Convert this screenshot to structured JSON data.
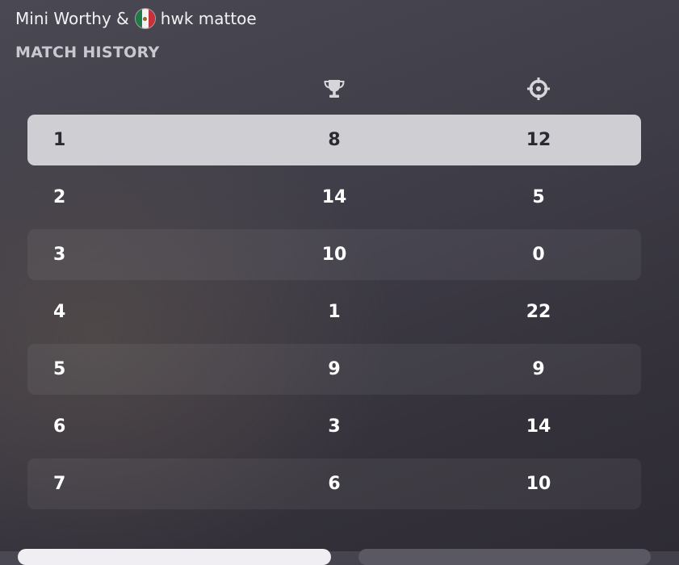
{
  "header": {
    "player1": "Mini Worthy &",
    "player2": "hwk mattoe",
    "flag_icon": "mexico-flag-icon"
  },
  "section_title": "MATCH HISTORY",
  "columns": {
    "score_icon": "trophy-icon",
    "kills_icon": "crosshair-icon"
  },
  "colors": {
    "selected_row_bg": "#cfcfd3",
    "alt_row_bg": "rgba(255,255,255,0.055)",
    "text": "#ffffff"
  },
  "matches": [
    {
      "index": "1",
      "score": "8",
      "kills": "12",
      "selected": true
    },
    {
      "index": "2",
      "score": "14",
      "kills": "5"
    },
    {
      "index": "3",
      "score": "10",
      "kills": "0"
    },
    {
      "index": "4",
      "score": "1",
      "kills": "22"
    },
    {
      "index": "5",
      "score": "9",
      "kills": "9"
    },
    {
      "index": "6",
      "score": "3",
      "kills": "14"
    },
    {
      "index": "7",
      "score": "6",
      "kills": "10"
    }
  ]
}
